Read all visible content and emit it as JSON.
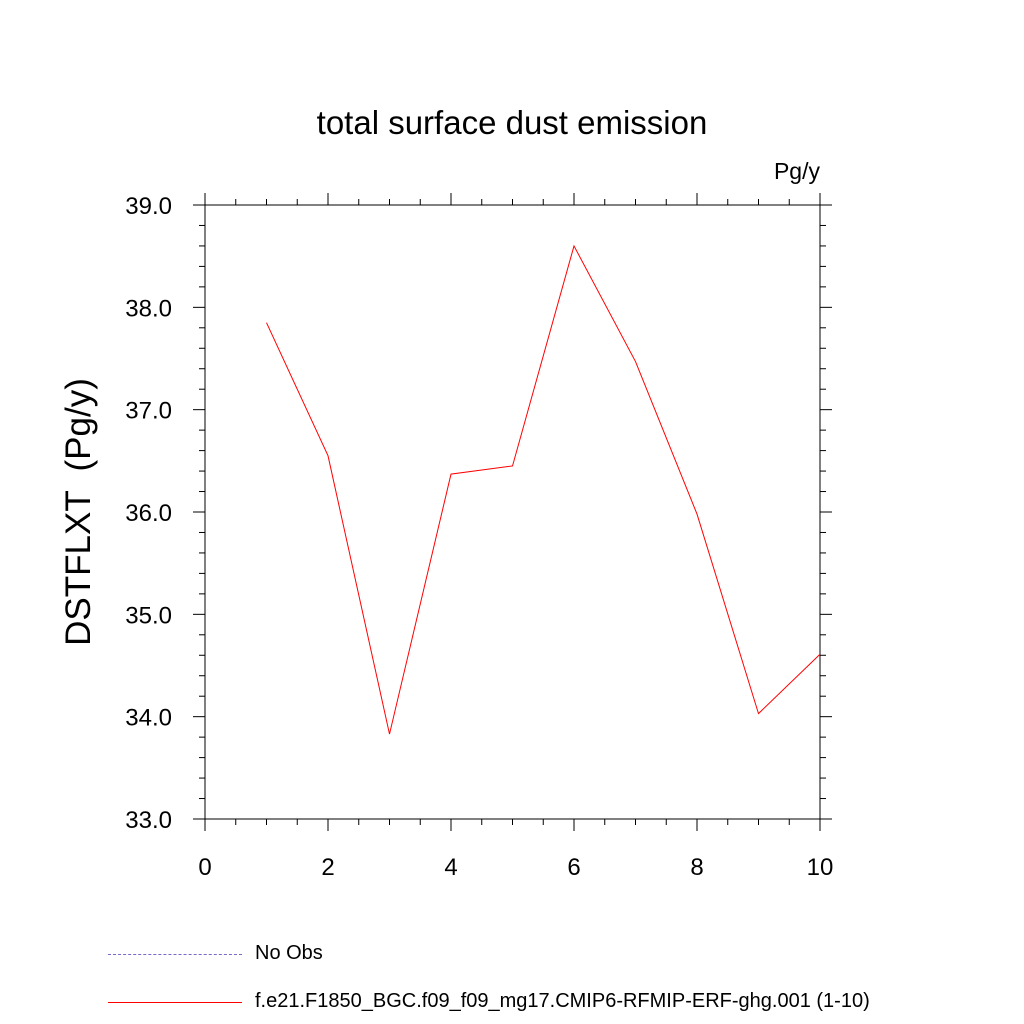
{
  "chart_data": {
    "type": "line",
    "title": "total surface dust emission",
    "units_label": "Pg/y",
    "ylabel": "DSTFLXT  (Pg/y)",
    "xlabel": "",
    "xlim": [
      0,
      10
    ],
    "ylim": [
      33.0,
      39.0
    ],
    "x_ticks": [
      "0",
      "2",
      "4",
      "6",
      "8",
      "10"
    ],
    "y_ticks": [
      "33.0",
      "34.0",
      "35.0",
      "36.0",
      "37.0",
      "38.0",
      "39.0"
    ],
    "grid": false,
    "legend_position": "bottom",
    "series": [
      {
        "name": "f.e21.F1850_BGC.f09_f09_mg17.CMIP6-RFMIP-ERF-ghg.001 (1-10)",
        "color": "#ff0000",
        "style": "solid",
        "x": [
          1,
          2,
          3,
          4,
          5,
          6,
          7,
          8,
          9,
          10
        ],
        "values": [
          37.85,
          36.55,
          33.83,
          36.37,
          36.45,
          38.6,
          37.47,
          35.98,
          34.03,
          34.61
        ]
      }
    ],
    "legend": [
      {
        "label": "No Obs",
        "color": "#7b68c8",
        "style": "dashed"
      },
      {
        "label": "f.e21.F1850_BGC.f09_f09_mg17.CMIP6-RFMIP-ERF-ghg.001 (1-10)",
        "color": "#ff0000",
        "style": "solid"
      }
    ]
  }
}
